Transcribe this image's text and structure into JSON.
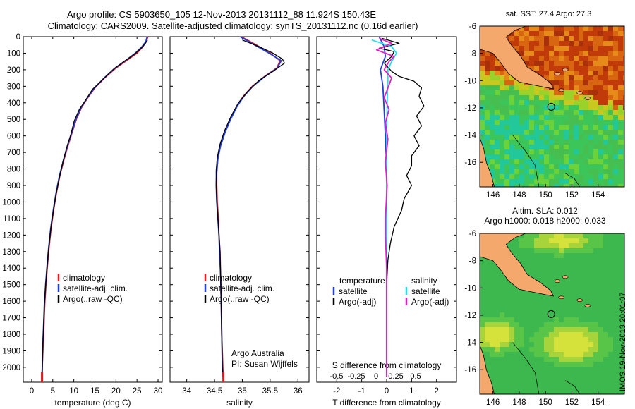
{
  "titles": {
    "line1": "Argo profile: CS 5903650_105 12-Nov-2013 20131112_88 11.924S 150.43E",
    "line2": "Climatology: CARS2009. Satellite-adjusted climatology: synTS_20131112.nc (0.16d earlier)"
  },
  "colors": {
    "climatology": "#e41a1c",
    "satellite": "#1f3fd9",
    "argo": "#000000",
    "sat_salinity": "#22e0f0",
    "argo_salinity": "#e020c0"
  },
  "chart_data": [
    {
      "type": "line",
      "name": "temperature-profile",
      "xlabel": "temperature (deg C)",
      "ylabel": "",
      "xlim": [
        -2,
        31
      ],
      "ylim": [
        2090,
        0
      ],
      "xticks": [
        0,
        5,
        10,
        15,
        20,
        25,
        30
      ],
      "yticks": [
        0,
        100,
        200,
        300,
        400,
        500,
        600,
        700,
        800,
        900,
        1000,
        1100,
        1200,
        1300,
        1400,
        1500,
        1600,
        1700,
        1800,
        1900,
        2000
      ],
      "legend": [
        "climatology",
        "satellite-adj. clim.",
        "Argo(..raw -QC)"
      ],
      "series": [
        {
          "name": "climatology",
          "color": "#e41a1c",
          "points": [
            [
              27.6,
              0
            ],
            [
              27.2,
              30
            ],
            [
              26.4,
              60
            ],
            [
              25,
              100
            ],
            [
              22.8,
              140
            ],
            [
              20,
              190
            ],
            [
              17.3,
              250
            ],
            [
              15,
              310
            ],
            [
              13.3,
              370
            ],
            [
              11.8,
              430
            ],
            [
              10.6,
              500
            ],
            [
              9.6,
              580
            ],
            [
              8.6,
              660
            ],
            [
              7.6,
              750
            ],
            [
              6.7,
              840
            ],
            [
              5.9,
              940
            ],
            [
              5.2,
              1050
            ],
            [
              4.6,
              1160
            ],
            [
              4.1,
              1280
            ],
            [
              3.7,
              1400
            ],
            [
              3.4,
              1500
            ],
            [
              3.1,
              1620
            ],
            [
              2.9,
              1750
            ],
            [
              2.7,
              1880
            ],
            [
              2.5,
              2000
            ],
            [
              2.45,
              2060
            ]
          ]
        },
        {
          "name": "satellite-adj. clim.",
          "color": "#1f3fd9",
          "points": [
            [
              27.4,
              0
            ],
            [
              27.1,
              30
            ],
            [
              26.2,
              60
            ],
            [
              24.6,
              100
            ],
            [
              22.5,
              140
            ],
            [
              19.8,
              190
            ],
            [
              17.2,
              250
            ],
            [
              14.9,
              310
            ],
            [
              13.2,
              370
            ],
            [
              11.7,
              430
            ],
            [
              10.5,
              500
            ],
            [
              9.5,
              580
            ],
            [
              8.5,
              660
            ],
            [
              7.5,
              750
            ],
            [
              6.6,
              840
            ],
            [
              5.8,
              940
            ],
            [
              5.1,
              1050
            ],
            [
              4.5,
              1160
            ],
            [
              4.0,
              1280
            ],
            [
              3.6,
              1400
            ],
            [
              3.3,
              1500
            ],
            [
              3.0,
              1620
            ],
            [
              2.8,
              1750
            ],
            [
              2.6,
              1880
            ],
            [
              2.5,
              2000
            ],
            [
              2.45,
              2060
            ]
          ]
        },
        {
          "name": "Argo(..raw -QC)",
          "color": "#000000",
          "points": [
            [
              27.5,
              20
            ],
            [
              27,
              40
            ],
            [
              26,
              70
            ],
            [
              24.5,
              105
            ],
            [
              22.2,
              145
            ],
            [
              19.5,
              195
            ],
            [
              17,
              255
            ],
            [
              14.4,
              320
            ],
            [
              12.9,
              380
            ],
            [
              11.3,
              440
            ],
            [
              10.1,
              510
            ],
            [
              9.3,
              590
            ],
            [
              8.3,
              670
            ],
            [
              7.4,
              760
            ],
            [
              6.6,
              850
            ],
            [
              5.8,
              950
            ],
            [
              5.1,
              1060
            ],
            [
              4.5,
              1170
            ],
            [
              4.0,
              1290
            ],
            [
              3.6,
              1410
            ],
            [
              3.3,
              1510
            ],
            [
              3.0,
              1630
            ],
            [
              2.8,
              1760
            ],
            [
              2.6,
              1890
            ],
            [
              2.5,
              2000
            ],
            [
              2.45,
              2050
            ]
          ]
        }
      ]
    },
    {
      "type": "line",
      "name": "salinity-profile",
      "xlabel": "salinity",
      "xlim": [
        33.7,
        36.2
      ],
      "ylim": [
        2090,
        0
      ],
      "xticks": [
        34,
        34.5,
        35,
        35.5,
        36
      ],
      "legend": [
        "climatology",
        "satellite-adj. clim.",
        "Argo(..raw -QC)"
      ],
      "annotation": [
        "Argo Australia",
        "PI: Susan Wijffels"
      ],
      "series": [
        {
          "name": "climatology",
          "color": "#e41a1c",
          "points": [
            [
              34.98,
              0
            ],
            [
              35.25,
              50
            ],
            [
              35.5,
              100
            ],
            [
              35.68,
              145
            ],
            [
              35.62,
              190
            ],
            [
              35.4,
              240
            ],
            [
              35.18,
              300
            ],
            [
              35.02,
              360
            ],
            [
              34.9,
              420
            ],
            [
              34.78,
              500
            ],
            [
              34.68,
              580
            ],
            [
              34.6,
              660
            ],
            [
              34.56,
              740
            ],
            [
              34.54,
              820
            ],
            [
              34.54,
              900
            ],
            [
              34.55,
              1000
            ],
            [
              34.57,
              1100
            ],
            [
              34.58,
              1200
            ],
            [
              34.6,
              1300
            ],
            [
              34.61,
              1450
            ],
            [
              34.62,
              1600
            ],
            [
              34.63,
              1800
            ],
            [
              34.65,
              2000
            ],
            [
              34.66,
              2060
            ]
          ]
        },
        {
          "name": "satellite-adj. clim.",
          "color": "#1f3fd9",
          "points": [
            [
              34.96,
              0
            ],
            [
              35.22,
              50
            ],
            [
              35.48,
              100
            ],
            [
              35.7,
              145
            ],
            [
              35.63,
              190
            ],
            [
              35.41,
              240
            ],
            [
              35.19,
              300
            ],
            [
              35.03,
              360
            ],
            [
              34.91,
              420
            ],
            [
              34.79,
              500
            ],
            [
              34.69,
              580
            ],
            [
              34.61,
              660
            ],
            [
              34.56,
              740
            ],
            [
              34.54,
              820
            ],
            [
              34.53,
              900
            ],
            [
              34.54,
              1000
            ],
            [
              34.56,
              1100
            ],
            [
              34.58,
              1200
            ],
            [
              34.59,
              1300
            ],
            [
              34.61,
              1450
            ],
            [
              34.62,
              1600
            ],
            [
              34.63,
              1800
            ],
            [
              34.64,
              2000
            ],
            [
              34.65,
              2060
            ]
          ]
        },
        {
          "name": "Argo(..raw -QC)",
          "color": "#000000",
          "points": [
            [
              35.0,
              20
            ],
            [
              35.3,
              60
            ],
            [
              35.55,
              100
            ],
            [
              35.72,
              135
            ],
            [
              35.76,
              160
            ],
            [
              35.55,
              210
            ],
            [
              35.3,
              265
            ],
            [
              35.1,
              330
            ],
            [
              34.93,
              400
            ],
            [
              34.8,
              480
            ],
            [
              34.68,
              570
            ],
            [
              34.6,
              650
            ],
            [
              34.55,
              730
            ],
            [
              34.53,
              810
            ],
            [
              34.53,
              890
            ],
            [
              34.54,
              990
            ],
            [
              34.56,
              1090
            ],
            [
              34.58,
              1190
            ],
            [
              34.6,
              1300
            ],
            [
              34.61,
              1440
            ],
            [
              34.62,
              1600
            ],
            [
              34.63,
              1800
            ],
            [
              34.64,
              2000
            ],
            [
              34.65,
              2050
            ]
          ]
        }
      ]
    },
    {
      "type": "line",
      "name": "difference-profile",
      "xlabel": "T difference from climatology",
      "xlabel_top": "S difference from climatology",
      "xlim": [
        -2.8,
        2.8
      ],
      "ylim": [
        2090,
        0
      ],
      "xticks": [
        -2,
        -1,
        0,
        1,
        2
      ],
      "xticks_labels": [
        "-2",
        "-1",
        "0",
        "1",
        "2"
      ],
      "sticks_labels": [
        "-0.5",
        "-0.25",
        "0",
        "0.25",
        "0.5"
      ],
      "legend_left_title": "temperature",
      "legend_right_title": "salinity",
      "legend_left": [
        "satellite",
        "Argo(-adj)"
      ],
      "legend_right": [
        "satellite",
        "Argo(-adj)"
      ],
      "series": [
        {
          "name": "temperature satellite",
          "color": "#1f3fd9",
          "points": [
            [
              -0.3,
              0
            ],
            [
              -0.1,
              60
            ],
            [
              -0.05,
              120
            ],
            [
              -0.25,
              200
            ],
            [
              -0.15,
              300
            ],
            [
              -0.1,
              450
            ],
            [
              -0.05,
              600
            ],
            [
              0,
              800
            ],
            [
              0,
              1200
            ],
            [
              0,
              1600
            ],
            [
              0,
              2060
            ]
          ]
        },
        {
          "name": "temperature Argo(-adj)",
          "color": "#000000",
          "points": [
            [
              -0.2,
              10
            ],
            [
              0.5,
              40
            ],
            [
              -0.3,
              70
            ],
            [
              0.3,
              90
            ],
            [
              0.2,
              120
            ],
            [
              -0.1,
              160
            ],
            [
              0.2,
              210
            ],
            [
              0.5,
              240
            ],
            [
              1.1,
              270
            ],
            [
              1.4,
              310
            ],
            [
              1.3,
              360
            ],
            [
              1.5,
              420
            ],
            [
              1.2,
              480
            ],
            [
              1.4,
              540
            ],
            [
              1.1,
              600
            ],
            [
              1.3,
              660
            ],
            [
              1.0,
              720
            ],
            [
              1.0,
              780
            ],
            [
              0.8,
              840
            ],
            [
              1.0,
              900
            ],
            [
              0.7,
              980
            ],
            [
              0.6,
              1050
            ],
            [
              0.3,
              1150
            ],
            [
              0.15,
              1250
            ],
            [
              0.05,
              1350
            ],
            [
              0,
              1500
            ],
            [
              0,
              1800
            ],
            [
              0,
              2060
            ]
          ]
        },
        {
          "name": "salinity satellite",
          "color": "#22e0f0",
          "points": [
            [
              -0.6,
              20
            ],
            [
              0.2,
              60
            ],
            [
              0.4,
              100
            ],
            [
              0.2,
              150
            ],
            [
              0.05,
              200
            ],
            [
              0.05,
              260
            ],
            [
              0.02,
              400
            ],
            [
              0,
              600
            ],
            [
              0,
              900
            ],
            [
              0,
              1300
            ],
            [
              0,
              2060
            ]
          ]
        },
        {
          "name": "salinity Argo(-adj)",
          "color": "#e020c0",
          "points": [
            [
              -0.3,
              10
            ],
            [
              0.2,
              40
            ],
            [
              -0.4,
              80
            ],
            [
              0.3,
              120
            ],
            [
              0.1,
              150
            ],
            [
              -0.1,
              200
            ],
            [
              0.2,
              250
            ],
            [
              0.05,
              310
            ],
            [
              -0.1,
              370
            ],
            [
              0.1,
              440
            ],
            [
              -0.05,
              520
            ],
            [
              0.05,
              620
            ],
            [
              -0.05,
              760
            ],
            [
              0.02,
              900
            ],
            [
              -0.05,
              1100
            ],
            [
              -0.05,
              1200
            ],
            [
              0,
              1400
            ],
            [
              0,
              1700
            ],
            [
              0,
              2060
            ]
          ]
        }
      ]
    }
  ],
  "maps": [
    {
      "name": "sst-map",
      "title": "sat. SST: 27.4  Argo: 27.3",
      "xticks": [
        146,
        148,
        150,
        152,
        154
      ],
      "yticks": [
        -6,
        -8,
        -10,
        -12,
        -14,
        -16
      ],
      "lon_range": [
        145,
        156
      ],
      "lat_range": [
        -17.8,
        -6
      ],
      "profile_marker": [
        150.43,
        -11.92
      ]
    },
    {
      "name": "sla-map",
      "title_lines": [
        "Altim. SLA: 0.012",
        "Argo h1000: 0.018  h2000: 0.033"
      ],
      "xticks": [
        146,
        148,
        150,
        152,
        154
      ],
      "yticks": [
        -6,
        -8,
        -10,
        -12,
        -14,
        -16
      ],
      "lon_range": [
        145,
        156
      ],
      "lat_range": [
        -17.8,
        -6
      ],
      "profile_marker": [
        150.43,
        -11.92
      ]
    }
  ],
  "stamp": "IMOS 19-Nov-2013 20:01:07"
}
